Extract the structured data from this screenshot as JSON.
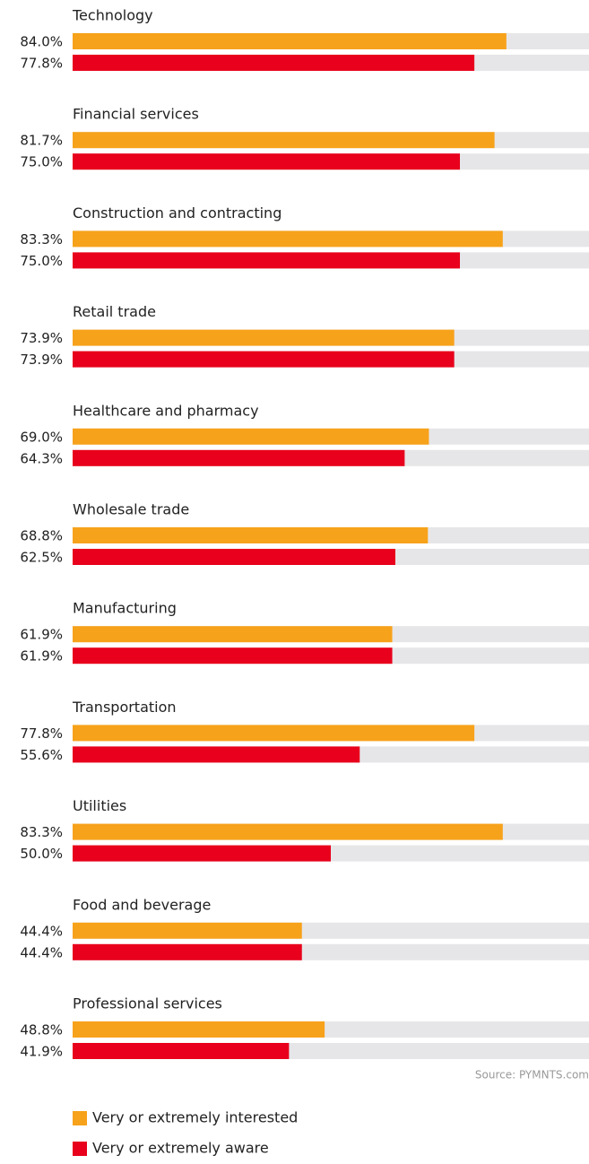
{
  "chart_data": {
    "type": "bar",
    "orientation": "horizontal",
    "categories": [
      "Technology",
      "Financial services",
      "Construction and contracting",
      "Retail trade",
      "Healthcare and pharmacy",
      "Wholesale trade",
      "Manufacturing",
      "Transportation",
      "Utilities",
      "Food and beverage",
      "Professional services"
    ],
    "series": [
      {
        "name": "Very or extremely interested",
        "color": "#f7a21b",
        "values": [
          84.0,
          81.7,
          83.3,
          73.9,
          69.0,
          68.8,
          61.9,
          77.8,
          83.3,
          44.4,
          48.8
        ],
        "value_labels": [
          "84.0%",
          "81.7%",
          "83.3%",
          "73.9%",
          "69.0%",
          "68.8%",
          "61.9%",
          "77.8%",
          "83.3%",
          "44.4%",
          "48.8%"
        ]
      },
      {
        "name": "Very or extremely aware",
        "color": "#e8001c",
        "values": [
          77.8,
          75.0,
          75.0,
          73.9,
          64.3,
          62.5,
          61.9,
          55.6,
          50.0,
          44.4,
          41.9
        ],
        "value_labels": [
          "77.8%",
          "75.0%",
          "75.0%",
          "73.9%",
          "64.3%",
          "62.5%",
          "61.9%",
          "55.6%",
          "50.0%",
          "44.4%",
          "41.9%"
        ]
      }
    ],
    "xlim": [
      0,
      100
    ],
    "source": "Source: PYMNTS.com"
  }
}
